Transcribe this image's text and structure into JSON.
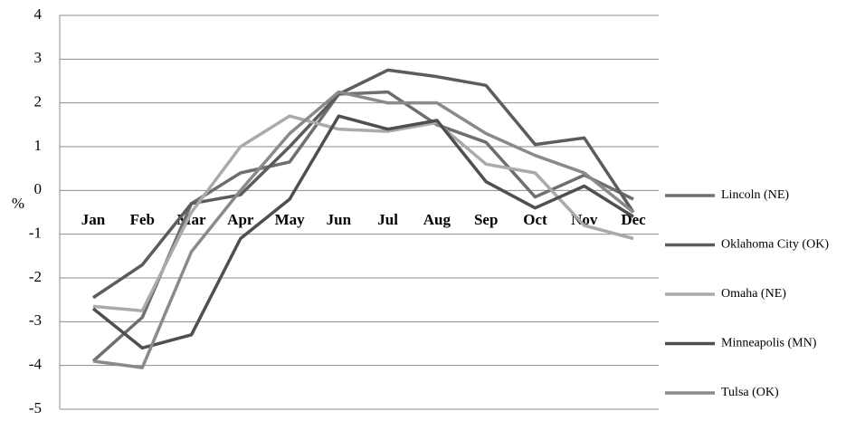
{
  "chart_data": {
    "type": "line",
    "y_label": "%",
    "categories": [
      "Jan",
      "Feb",
      "Mar",
      "Apr",
      "May",
      "Jun",
      "Jul",
      "Aug",
      "Sep",
      "Oct",
      "Nov",
      "Dec"
    ],
    "series": [
      {
        "name": "Lincoln (NE)",
        "color": "#6e6e6e",
        "values": [
          -3.9,
          -2.9,
          -0.3,
          0.4,
          0.65,
          2.2,
          2.25,
          1.5,
          1.1,
          -0.15,
          0.35,
          -0.2
        ]
      },
      {
        "name": "Oklahoma City (OK)",
        "color": "#5c5c5c",
        "values": [
          -2.45,
          -1.7,
          -0.3,
          -0.1,
          1.0,
          2.2,
          2.75,
          2.6,
          2.4,
          1.05,
          1.2,
          -0.5
        ]
      },
      {
        "name": "Omaha (NE)",
        "color": "#aaaaaa",
        "values": [
          -2.65,
          -2.75,
          -0.5,
          1.0,
          1.7,
          1.4,
          1.35,
          1.55,
          0.6,
          0.4,
          -0.8,
          -1.1
        ]
      },
      {
        "name": "Minneapolis (MN)",
        "color": "#4f4f4f",
        "values": [
          -2.7,
          -3.6,
          -3.3,
          -1.1,
          -0.2,
          1.7,
          1.4,
          1.6,
          0.2,
          -0.4,
          0.1,
          -0.6
        ]
      },
      {
        "name": "Tulsa (OK)",
        "color": "#8a8a8a",
        "values": [
          -3.9,
          -4.05,
          -1.4,
          0.0,
          1.3,
          2.25,
          2.0,
          2.0,
          1.3,
          0.8,
          0.4,
          -0.5
        ]
      }
    ],
    "ylim": [
      -5,
      4
    ],
    "yticks": [
      -5,
      -4,
      -3,
      -2,
      -1,
      0,
      1,
      2,
      3,
      4
    ],
    "grid": true,
    "legend": "right"
  }
}
